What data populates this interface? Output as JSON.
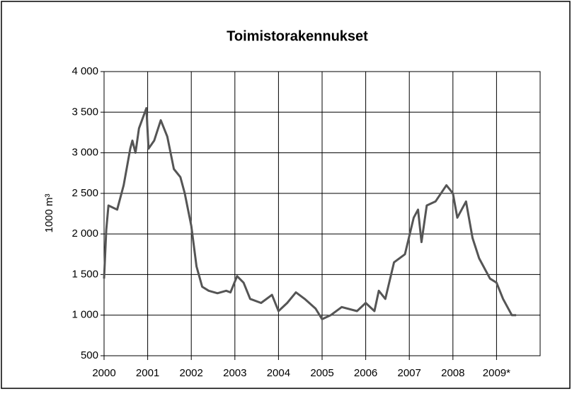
{
  "chart_data": {
    "type": "line",
    "title": "Toimistorakennukset",
    "y_label": "1000 m³",
    "x": [
      2000.0,
      2000.05,
      2000.1,
      2000.3,
      2000.45,
      2000.6,
      2000.65,
      2000.72,
      2000.8,
      2000.97,
      2001.02,
      2001.15,
      2001.3,
      2001.45,
      2001.6,
      2001.75,
      2001.85,
      2002.0,
      2002.12,
      2002.25,
      2002.4,
      2002.6,
      2002.8,
      2002.9,
      2003.05,
      2003.2,
      2003.35,
      2003.6,
      2003.85,
      2004.0,
      2004.2,
      2004.4,
      2004.6,
      2004.85,
      2005.0,
      2005.2,
      2005.45,
      2005.8,
      2006.0,
      2006.2,
      2006.3,
      2006.45,
      2006.65,
      2006.9,
      2007.1,
      2007.2,
      2007.28,
      2007.4,
      2007.6,
      2007.85,
      2008.0,
      2008.1,
      2008.3,
      2008.45,
      2008.6,
      2008.85,
      2009.0,
      2009.15,
      2009.35,
      2009.45
    ],
    "series": [
      {
        "name": "Toimistorakennukset",
        "color": "#555555",
        "values": [
          1450,
          2050,
          2350,
          2300,
          2600,
          3050,
          3150,
          3000,
          3300,
          3550,
          3050,
          3150,
          3400,
          3200,
          2800,
          2700,
          2500,
          2100,
          1600,
          1350,
          1300,
          1270,
          1300,
          1280,
          1480,
          1400,
          1200,
          1150,
          1250,
          1050,
          1150,
          1280,
          1200,
          1080,
          950,
          1000,
          1100,
          1050,
          1150,
          1050,
          1300,
          1200,
          1650,
          1750,
          2200,
          2300,
          1900,
          2350,
          2400,
          2600,
          2500,
          2200,
          2400,
          1950,
          1700,
          1450,
          1400,
          1200,
          1000,
          1000
        ]
      }
    ],
    "xlim": [
      2000,
      2010
    ],
    "xticks": [
      2000,
      2001,
      2002,
      2003,
      2004,
      2005,
      2006,
      2007,
      2008,
      {
        "value": 2009,
        "label": "2009*"
      }
    ],
    "ylim": [
      500,
      4000
    ],
    "yticks": [
      500,
      {
        "value": 1000,
        "label": "1 000"
      },
      {
        "value": 1500,
        "label": "1 500"
      },
      {
        "value": 2000,
        "label": "2 000"
      },
      {
        "value": 2500,
        "label": "2 500"
      },
      {
        "value": 3000,
        "label": "3 000"
      },
      {
        "value": 3500,
        "label": "3 500"
      },
      {
        "value": 4000,
        "label": "4 000"
      }
    ],
    "grid": true
  }
}
